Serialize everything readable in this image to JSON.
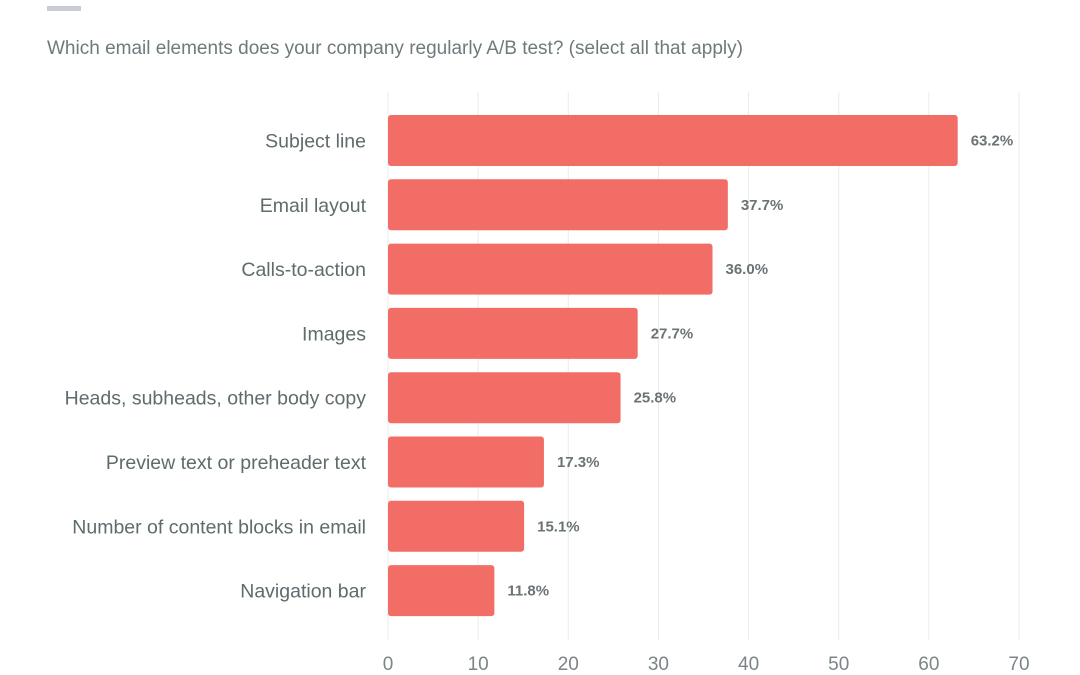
{
  "header": {
    "question": "Which email elements does your company regularly A/B test? (select all that apply)"
  },
  "colors": {
    "bar": "#f26d66",
    "grid": "#e9ebec"
  },
  "chart_data": {
    "type": "bar",
    "orientation": "horizontal",
    "title": "Which email elements does your company regularly A/B test? (select all that apply)",
    "categories": [
      "Subject line",
      "Email layout",
      "Calls-to-action",
      "Images",
      "Heads, subheads, other body copy",
      "Preview text or preheader text",
      "Number of content blocks in email",
      "Navigation bar"
    ],
    "values": [
      63.2,
      37.7,
      36.0,
      27.7,
      25.8,
      17.3,
      15.1,
      11.8
    ],
    "value_labels": [
      "63.2%",
      "37.7%",
      "36.0%",
      "27.7%",
      "25.8%",
      "17.3%",
      "15.1%",
      "11.8%"
    ],
    "xlim": [
      0,
      70
    ],
    "xticks": [
      0,
      10,
      20,
      30,
      40,
      50,
      60,
      70
    ],
    "xlabel": "",
    "ylabel": "",
    "grid": "vertical"
  }
}
